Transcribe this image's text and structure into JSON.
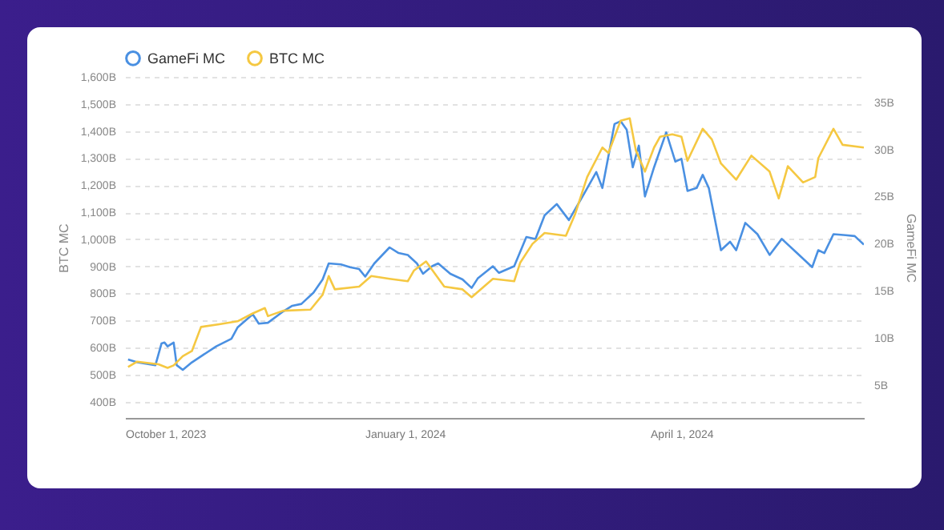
{
  "chart_data": {
    "type": "line",
    "xlabel": null,
    "ylabel": "BTC MC",
    "y2label": "GameFi MC",
    "xlim": [
      "2023-10-01",
      "2024-05-31"
    ],
    "xticks": [
      {
        "value": "2023-10-01",
        "label": "October 1, 2023"
      },
      {
        "value": "2024-01-01",
        "label": "January 1, 2024"
      },
      {
        "value": "2024-04-01",
        "label": "April 1, 2024"
      }
    ],
    "ylim": [
      340,
      1600
    ],
    "yticks": [
      {
        "value": 400,
        "label": "400B"
      },
      {
        "value": 500,
        "label": "500B"
      },
      {
        "value": 600,
        "label": "600B"
      },
      {
        "value": 700,
        "label": "700B"
      },
      {
        "value": 800,
        "label": "800B"
      },
      {
        "value": 900,
        "label": "900B"
      },
      {
        "value": 1000,
        "label": "1,000B"
      },
      {
        "value": 1100,
        "label": "1,100B"
      },
      {
        "value": 1200,
        "label": "1,200B"
      },
      {
        "value": 1300,
        "label": "1,300B"
      },
      {
        "value": 1400,
        "label": "1,400B"
      },
      {
        "value": 1500,
        "label": "1,500B"
      },
      {
        "value": 1600,
        "label": "1,600B"
      }
    ],
    "y2lim": [
      1.5,
      37.7
    ],
    "y2ticks": [
      {
        "value": 5,
        "label": "5B"
      },
      {
        "value": 10,
        "label": "10B"
      },
      {
        "value": 15,
        "label": "15B"
      },
      {
        "value": 20,
        "label": "20B"
      },
      {
        "value": 25,
        "label": "25B"
      },
      {
        "value": 30,
        "label": "30B"
      },
      {
        "value": 35,
        "label": "35B"
      }
    ],
    "grid": "y",
    "legend": "top left",
    "series": [
      {
        "name": "GameFi MC",
        "color": "#4a90e2",
        "axis": "y2",
        "x": [
          "2023-10-02",
          "2023-10-05",
          "2023-10-11",
          "2023-10-13",
          "2023-10-14",
          "2023-10-15",
          "2023-10-17",
          "2023-10-18",
          "2023-10-20",
          "2023-10-23",
          "2023-10-31",
          "2023-11-05",
          "2023-11-07",
          "2023-11-12",
          "2023-11-14",
          "2023-11-17",
          "2023-11-22",
          "2023-11-25",
          "2023-11-28",
          "2023-12-02",
          "2023-12-05",
          "2023-12-07",
          "2023-12-11",
          "2023-12-14",
          "2023-12-17",
          "2023-12-19",
          "2023-12-22",
          "2023-12-27",
          "2023-12-30",
          "2024-01-02",
          "2024-01-05",
          "2024-01-07",
          "2024-01-10",
          "2024-01-12",
          "2024-01-16",
          "2024-01-20",
          "2024-01-23",
          "2024-01-25",
          "2024-01-30",
          "2024-02-01",
          "2024-02-06",
          "2024-02-10",
          "2024-02-13",
          "2024-02-16",
          "2024-02-20",
          "2024-02-24",
          "2024-02-29",
          "2024-03-04",
          "2024-03-06",
          "2024-03-10",
          "2024-03-12",
          "2024-03-14",
          "2024-03-16",
          "2024-03-18",
          "2024-03-20",
          "2024-03-23",
          "2024-03-27",
          "2024-03-30",
          "2024-04-01",
          "2024-04-03",
          "2024-04-06",
          "2024-04-08",
          "2024-04-10",
          "2024-04-14",
          "2024-04-17",
          "2024-04-19",
          "2024-04-22",
          "2024-04-26",
          "2024-04-30",
          "2024-05-04",
          "2024-05-09",
          "2024-05-14",
          "2024-05-16",
          "2024-05-18",
          "2024-05-21",
          "2024-05-25",
          "2024-05-28",
          "2024-05-31"
        ],
        "values": [
          7.7,
          7.4,
          7.1,
          9.4,
          9.5,
          9.1,
          9.5,
          7.1,
          6.6,
          7.4,
          9.1,
          9.9,
          11.1,
          12.5,
          11.5,
          11.6,
          12.8,
          13.4,
          13.6,
          14.8,
          16.2,
          17.9,
          17.8,
          17.5,
          17.3,
          16.5,
          17.9,
          19.6,
          19.0,
          18.8,
          17.9,
          16.8,
          17.6,
          17.9,
          16.8,
          16.2,
          15.3,
          16.3,
          17.6,
          16.9,
          17.6,
          20.7,
          20.5,
          23.0,
          24.2,
          22.5,
          25.3,
          27.6,
          25.9,
          32.7,
          33.0,
          32.1,
          28.1,
          30.4,
          25.0,
          28.1,
          31.8,
          28.7,
          29.0,
          25.6,
          25.9,
          27.3,
          25.9,
          19.3,
          20.2,
          19.3,
          22.2,
          21.0,
          18.8,
          20.5,
          19.0,
          17.5,
          19.3,
          19.0,
          21.0,
          20.9,
          20.8,
          19.9
        ]
      },
      {
        "name": "BTC MC",
        "color": "#f5c842",
        "x": [
          "2023-10-02",
          "2023-10-05",
          "2023-10-12",
          "2023-10-15",
          "2023-10-17",
          "2023-10-20",
          "2023-10-23",
          "2023-10-26",
          "2023-11-01",
          "2023-11-07",
          "2023-11-12",
          "2023-11-16",
          "2023-11-17",
          "2023-11-22",
          "2023-12-01",
          "2023-12-05",
          "2023-12-07",
          "2023-12-09",
          "2023-12-17",
          "2023-12-21",
          "2023-12-27",
          "2024-01-02",
          "2024-01-04",
          "2024-01-08",
          "2024-01-14",
          "2024-01-20",
          "2024-01-23",
          "2024-01-30",
          "2024-02-06",
          "2024-02-08",
          "2024-02-12",
          "2024-02-16",
          "2024-02-23",
          "2024-02-26",
          "2024-03-01",
          "2024-03-06",
          "2024-03-08",
          "2024-03-12",
          "2024-03-15",
          "2024-03-17",
          "2024-03-20",
          "2024-03-23",
          "2024-03-25",
          "2024-03-29",
          "2024-04-01",
          "2024-04-03",
          "2024-04-08",
          "2024-04-11",
          "2024-04-14",
          "2024-04-19",
          "2024-04-24",
          "2024-04-30",
          "2024-05-03",
          "2024-05-06",
          "2024-05-11",
          "2024-05-15",
          "2024-05-16",
          "2024-05-21",
          "2024-05-24",
          "2024-05-31"
        ],
        "values": [
          528,
          548,
          538,
          525,
          534,
          568,
          587,
          676,
          686,
          697,
          726,
          746,
          716,
          736,
          740,
          795,
          864,
          815,
          825,
          864,
          854,
          845,
          884,
          918,
          825,
          815,
          786,
          854,
          845,
          914,
          983,
          1023,
          1013,
          1092,
          1230,
          1339,
          1319,
          1438,
          1447,
          1329,
          1250,
          1339,
          1379,
          1388,
          1379,
          1290,
          1408,
          1369,
          1280,
          1220,
          1309,
          1250,
          1151,
          1270,
          1210,
          1230,
          1299,
          1408,
          1349,
          1339
        ]
      }
    ]
  }
}
